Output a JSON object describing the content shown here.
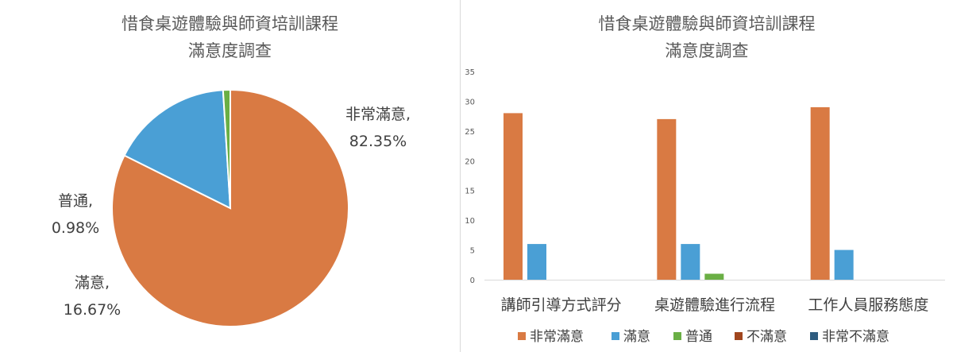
{
  "chart_data": [
    {
      "type": "pie",
      "title": "惜食桌遊體驗與師資培訓課程",
      "subtitle": "滿意度調查",
      "slices": [
        {
          "name": "非常滿意",
          "label": "非常滿意,",
          "percent_label": "82.35%",
          "value": 82.35,
          "color": "#D97A43"
        },
        {
          "name": "滿意",
          "label": "滿意,",
          "percent_label": "16.67%",
          "value": 16.67,
          "color": "#4A9FD5"
        },
        {
          "name": "普通",
          "label": "普通,",
          "percent_label": "0.98%",
          "value": 0.98,
          "color": "#6AAF45"
        }
      ]
    },
    {
      "type": "bar",
      "title": "惜食桌遊體驗與師資培訓課程",
      "subtitle": "滿意度調查",
      "categories": [
        "講師引導方式評分",
        "桌遊體驗進行流程",
        "工作人員服務態度"
      ],
      "ylim": [
        0,
        35
      ],
      "yticks": [
        "0",
        "5",
        "10",
        "15",
        "20",
        "25",
        "30",
        "35"
      ],
      "grid": false,
      "legend_position": "bottom",
      "series": [
        {
          "name": "非常滿意",
          "values": [
            28,
            27,
            29
          ],
          "color": "#D97A43"
        },
        {
          "name": "滿意",
          "values": [
            6,
            6,
            5
          ],
          "color": "#4A9FD5"
        },
        {
          "name": "普通",
          "values": [
            0,
            1,
            0
          ],
          "color": "#6AAF45"
        },
        {
          "name": "不滿意",
          "values": [
            0,
            0,
            0
          ],
          "color": "#A0461E"
        },
        {
          "name": "非常不滿意",
          "values": [
            0,
            0,
            0
          ],
          "color": "#2E5C7F"
        }
      ]
    }
  ]
}
